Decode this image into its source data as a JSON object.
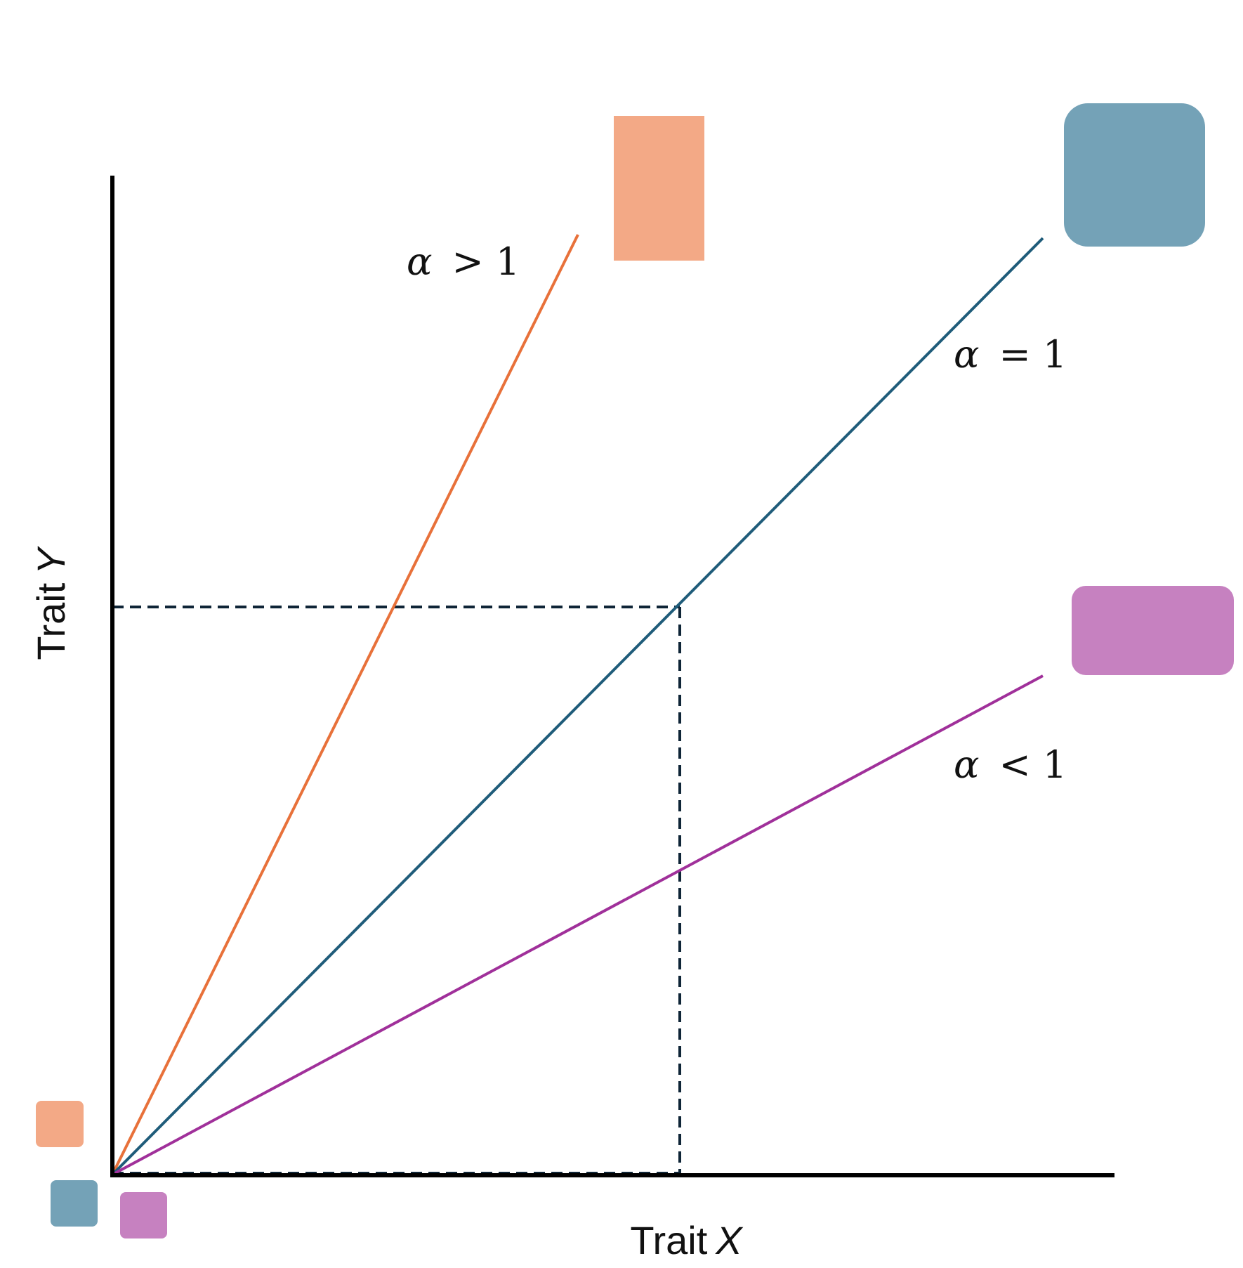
{
  "colors": {
    "orange_line": "#E8713A",
    "orange_fill": "#F3A986",
    "blue_line": "#1F5C7A",
    "blue_fill": "#74A2B7",
    "purple_line": "#A0309A",
    "purple_fill": "#C681C0",
    "axis": "#000000",
    "guide": "#0F2537"
  },
  "axes": {
    "x_label_prefix": "Trait",
    "x_label_var": "X",
    "y_label_prefix": "Trait",
    "y_label_var": "Y"
  },
  "lines": [
    {
      "name": "alpha-greater-than-one",
      "symbol": "α",
      "relation": "> 1",
      "color": "orange"
    },
    {
      "name": "alpha-equals-one",
      "symbol": "α",
      "relation": "= 1",
      "color": "blue"
    },
    {
      "name": "alpha-less-than-one",
      "symbol": "α",
      "relation": "< 1",
      "color": "purple"
    }
  ]
}
